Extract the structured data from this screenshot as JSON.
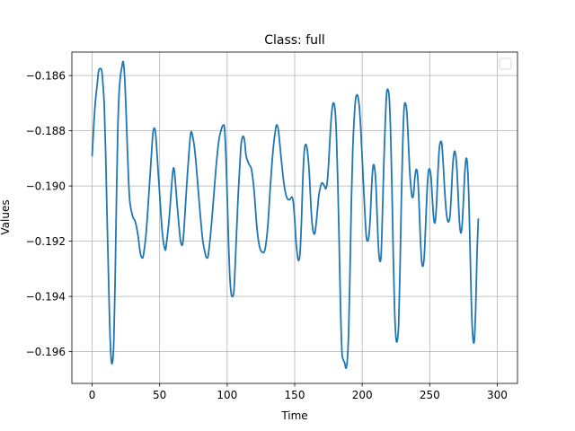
{
  "chart_data": {
    "type": "line",
    "title": "Class: full",
    "xlabel": "Time",
    "ylabel": "Values",
    "xlim": [
      -15,
      315
    ],
    "ylim": [
      -0.19715,
      -0.18515
    ],
    "xticks": [
      0,
      50,
      100,
      150,
      200,
      250,
      300
    ],
    "xtick_labels": [
      "0",
      "50",
      "100",
      "150",
      "200",
      "250",
      "300"
    ],
    "yticks": [
      -0.196,
      -0.194,
      -0.192,
      -0.19,
      -0.188,
      -0.186
    ],
    "ytick_labels": [
      "−0.196",
      "−0.194",
      "−0.192",
      "−0.190",
      "−0.188",
      "−0.186"
    ],
    "grid": true,
    "legend": {
      "placement": "top-right",
      "entries": []
    },
    "series": [
      {
        "color": "#1f77b4",
        "points": [
          [
            0,
            -0.1889
          ],
          [
            2,
            -0.1872
          ],
          [
            4,
            -0.1862
          ],
          [
            5,
            -0.1858
          ],
          [
            7,
            -0.1858
          ],
          [
            8,
            -0.1863
          ],
          [
            9,
            -0.1871
          ],
          [
            10,
            -0.1888
          ],
          [
            11,
            -0.191
          ],
          [
            12,
            -0.193
          ],
          [
            13,
            -0.195
          ],
          [
            14,
            -0.1962
          ],
          [
            15,
            -0.1964
          ],
          [
            16,
            -0.1957
          ],
          [
            17,
            -0.1935
          ],
          [
            18,
            -0.1905
          ],
          [
            19,
            -0.188
          ],
          [
            20,
            -0.1866
          ],
          [
            21,
            -0.186
          ],
          [
            22,
            -0.1857
          ],
          [
            23,
            -0.1855
          ],
          [
            24,
            -0.186
          ],
          [
            25,
            -0.1871
          ],
          [
            26,
            -0.1885
          ],
          [
            27,
            -0.1898
          ],
          [
            28,
            -0.1906
          ],
          [
            30,
            -0.1911
          ],
          [
            32,
            -0.1913
          ],
          [
            34,
            -0.1918
          ],
          [
            35,
            -0.1922
          ],
          [
            36,
            -0.1925
          ],
          [
            37,
            -0.1926
          ],
          [
            38,
            -0.1925
          ],
          [
            40,
            -0.1917
          ],
          [
            42,
            -0.1903
          ],
          [
            44,
            -0.1888
          ],
          [
            45,
            -0.1881
          ],
          [
            46,
            -0.1879
          ],
          [
            47,
            -0.1881
          ],
          [
            48,
            -0.1888
          ],
          [
            50,
            -0.1903
          ],
          [
            52,
            -0.1917
          ],
          [
            54,
            -0.1923
          ],
          [
            55,
            -0.1921
          ],
          [
            57,
            -0.1912
          ],
          [
            59,
            -0.1899
          ],
          [
            60,
            -0.1894
          ],
          [
            61,
            -0.1895
          ],
          [
            63,
            -0.1907
          ],
          [
            65,
            -0.1918
          ],
          [
            66,
            -0.1921
          ],
          [
            67,
            -0.1921
          ],
          [
            68,
            -0.1916
          ],
          [
            70,
            -0.19
          ],
          [
            72,
            -0.1886
          ],
          [
            73,
            -0.1881
          ],
          [
            74,
            -0.1881
          ],
          [
            76,
            -0.1887
          ],
          [
            78,
            -0.1898
          ],
          [
            80,
            -0.191
          ],
          [
            82,
            -0.192
          ],
          [
            84,
            -0.1925
          ],
          [
            85,
            -0.1926
          ],
          [
            86,
            -0.1925
          ],
          [
            88,
            -0.1916
          ],
          [
            90,
            -0.1904
          ],
          [
            92,
            -0.1892
          ],
          [
            94,
            -0.1883
          ],
          [
            96,
            -0.1879
          ],
          [
            97,
            -0.1878
          ],
          [
            98,
            -0.1879
          ],
          [
            99,
            -0.1888
          ],
          [
            100,
            -0.1903
          ],
          [
            101,
            -0.192
          ],
          [
            102,
            -0.1933
          ],
          [
            103,
            -0.1939
          ],
          [
            104,
            -0.194
          ],
          [
            105,
            -0.1938
          ],
          [
            106,
            -0.1928
          ],
          [
            108,
            -0.1905
          ],
          [
            110,
            -0.1887
          ],
          [
            111,
            -0.1883
          ],
          [
            112,
            -0.1882
          ],
          [
            113,
            -0.1884
          ],
          [
            114,
            -0.1889
          ],
          [
            116,
            -0.1892
          ],
          [
            118,
            -0.1894
          ],
          [
            120,
            -0.1902
          ],
          [
            122,
            -0.1915
          ],
          [
            124,
            -0.1922
          ],
          [
            126,
            -0.1924
          ],
          [
            128,
            -0.1923
          ],
          [
            130,
            -0.1915
          ],
          [
            132,
            -0.19
          ],
          [
            134,
            -0.1887
          ],
          [
            136,
            -0.1879
          ],
          [
            137,
            -0.1878
          ],
          [
            138,
            -0.188
          ],
          [
            140,
            -0.189
          ],
          [
            142,
            -0.1899
          ],
          [
            144,
            -0.1904
          ],
          [
            146,
            -0.1905
          ],
          [
            148,
            -0.1904
          ],
          [
            149,
            -0.1906
          ],
          [
            150,
            -0.1912
          ],
          [
            151,
            -0.192
          ],
          [
            152,
            -0.1925
          ],
          [
            153,
            -0.1927
          ],
          [
            154,
            -0.1924
          ],
          [
            155,
            -0.1913
          ],
          [
            156,
            -0.1898
          ],
          [
            157,
            -0.1888
          ],
          [
            158,
            -0.1885
          ],
          [
            159,
            -0.1886
          ],
          [
            160,
            -0.189
          ],
          [
            161,
            -0.1897
          ],
          [
            162,
            -0.1907
          ],
          [
            163,
            -0.1914
          ],
          [
            164,
            -0.1917
          ],
          [
            165,
            -0.1917
          ],
          [
            166,
            -0.1913
          ],
          [
            167,
            -0.1908
          ],
          [
            168,
            -0.1903
          ],
          [
            170,
            -0.1899
          ],
          [
            172,
            -0.19
          ],
          [
            173,
            -0.1901
          ],
          [
            174,
            -0.1899
          ],
          [
            175,
            -0.1893
          ],
          [
            176,
            -0.1884
          ],
          [
            177,
            -0.1876
          ],
          [
            178,
            -0.1871
          ],
          [
            179,
            -0.187
          ],
          [
            180,
            -0.1873
          ],
          [
            181,
            -0.1883
          ],
          [
            182,
            -0.19
          ],
          [
            183,
            -0.1922
          ],
          [
            184,
            -0.1945
          ],
          [
            185,
            -0.196
          ],
          [
            186,
            -0.1963
          ],
          [
            187,
            -0.1964
          ],
          [
            188,
            -0.1966
          ],
          [
            189,
            -0.1963
          ],
          [
            190,
            -0.1952
          ],
          [
            191,
            -0.193
          ],
          [
            192,
            -0.1905
          ],
          [
            193,
            -0.1887
          ],
          [
            194,
            -0.1876
          ],
          [
            195,
            -0.1869
          ],
          [
            196,
            -0.1867
          ],
          [
            197,
            -0.1868
          ],
          [
            198,
            -0.1872
          ],
          [
            199,
            -0.188
          ],
          [
            200,
            -0.189
          ],
          [
            201,
            -0.19
          ],
          [
            202,
            -0.191
          ],
          [
            203,
            -0.1918
          ],
          [
            204,
            -0.192
          ],
          [
            205,
            -0.1918
          ],
          [
            206,
            -0.1911
          ],
          [
            207,
            -0.19
          ],
          [
            208,
            -0.1893
          ],
          [
            209,
            -0.1893
          ],
          [
            210,
            -0.1898
          ],
          [
            211,
            -0.191
          ],
          [
            212,
            -0.1922
          ],
          [
            213,
            -0.1927
          ],
          [
            214,
            -0.1925
          ],
          [
            215,
            -0.191
          ],
          [
            216,
            -0.1892
          ],
          [
            217,
            -0.1878
          ],
          [
            218,
            -0.1867
          ],
          [
            219,
            -0.1865
          ],
          [
            220,
            -0.1868
          ],
          [
            221,
            -0.188
          ],
          [
            222,
            -0.19
          ],
          [
            223,
            -0.1925
          ],
          [
            224,
            -0.1945
          ],
          [
            225,
            -0.1955
          ],
          [
            226,
            -0.1956
          ],
          [
            227,
            -0.195
          ],
          [
            228,
            -0.193
          ],
          [
            229,
            -0.1905
          ],
          [
            230,
            -0.1885
          ],
          [
            231,
            -0.1872
          ],
          [
            232,
            -0.187
          ],
          [
            233,
            -0.1873
          ],
          [
            234,
            -0.1882
          ],
          [
            235,
            -0.1893
          ],
          [
            236,
            -0.19
          ],
          [
            237,
            -0.1904
          ],
          [
            238,
            -0.1903
          ],
          [
            239,
            -0.1897
          ],
          [
            240,
            -0.1894
          ],
          [
            241,
            -0.1896
          ],
          [
            242,
            -0.1905
          ],
          [
            243,
            -0.1918
          ],
          [
            244,
            -0.1927
          ],
          [
            245,
            -0.1929
          ],
          [
            246,
            -0.1925
          ],
          [
            247,
            -0.1914
          ],
          [
            248,
            -0.1902
          ],
          [
            249,
            -0.1895
          ],
          [
            250,
            -0.1894
          ],
          [
            251,
            -0.1897
          ],
          [
            252,
            -0.1905
          ],
          [
            253,
            -0.1912
          ],
          [
            254,
            -0.1913
          ],
          [
            255,
            -0.1907
          ],
          [
            256,
            -0.1896
          ],
          [
            257,
            -0.1887
          ],
          [
            258,
            -0.1884
          ],
          [
            259,
            -0.1885
          ],
          [
            260,
            -0.1892
          ],
          [
            261,
            -0.1901
          ],
          [
            262,
            -0.1908
          ],
          [
            263,
            -0.1912
          ],
          [
            264,
            -0.1913
          ],
          [
            265,
            -0.1911
          ],
          [
            266,
            -0.1903
          ],
          [
            267,
            -0.1893
          ],
          [
            268,
            -0.1888
          ],
          [
            269,
            -0.1888
          ],
          [
            270,
            -0.1893
          ],
          [
            271,
            -0.1903
          ],
          [
            272,
            -0.1913
          ],
          [
            273,
            -0.1917
          ],
          [
            274,
            -0.1914
          ],
          [
            275,
            -0.1905
          ],
          [
            276,
            -0.1895
          ],
          [
            277,
            -0.189
          ],
          [
            278,
            -0.1893
          ],
          [
            279,
            -0.1905
          ],
          [
            280,
            -0.1925
          ],
          [
            281,
            -0.1945
          ],
          [
            282,
            -0.1955
          ],
          [
            283,
            -0.1956
          ],
          [
            284,
            -0.1945
          ],
          [
            285,
            -0.1925
          ],
          [
            286,
            -0.1912
          ]
        ]
      }
    ]
  }
}
